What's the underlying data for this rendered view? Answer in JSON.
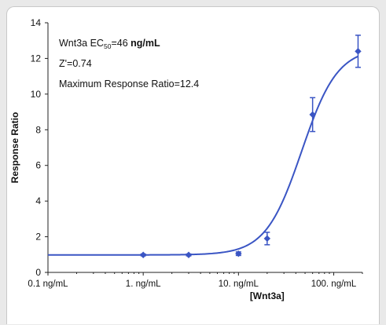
{
  "chart_data": {
    "type": "scatter",
    "x_scale": "log",
    "xlabel": "[Wnt3a]",
    "ylabel": "Response Ratio",
    "xlim": [
      0.1,
      200
    ],
    "ylim": [
      0,
      14
    ],
    "x_ticks": [
      {
        "value": 0.1,
        "label": "0.1 ng/mL"
      },
      {
        "value": 1,
        "label": "1. ng/mL"
      },
      {
        "value": 10,
        "label": "10. ng/mL"
      },
      {
        "value": 100,
        "label": "100. ng/mL"
      }
    ],
    "y_ticks": [
      0,
      2,
      4,
      6,
      8,
      10,
      12,
      14
    ],
    "grid": false,
    "series": [
      {
        "x": [
          1,
          3,
          10,
          20,
          60,
          180
        ],
        "y": [
          0.98,
          0.98,
          1.05,
          1.9,
          8.85,
          12.4
        ],
        "error": [
          0.05,
          0.05,
          0.1,
          0.35,
          0.95,
          0.9
        ]
      }
    ],
    "fit": {
      "bottom": 0.98,
      "top": 12.6,
      "ec50": 46,
      "hill": 2.3
    },
    "annotations": {
      "ec50_prefix": "Wnt3a EC",
      "ec50_sub": "50",
      "ec50_value": "=46 ",
      "ec50_unit": "ng/mL",
      "z_prime": "Z'=0.74",
      "max_response": "Maximum Response Ratio=12.4"
    },
    "colors": {
      "series": "#3a55c4",
      "axis": "#222222"
    }
  }
}
